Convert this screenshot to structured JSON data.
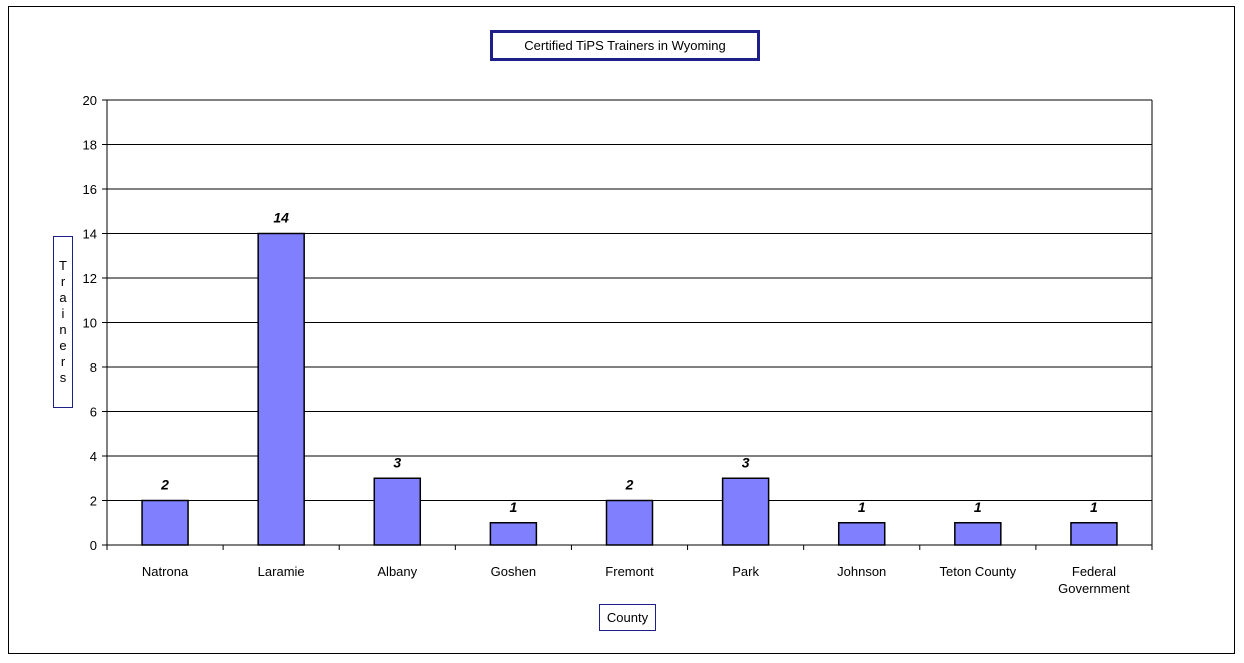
{
  "chart_data": {
    "type": "bar",
    "title": "Certified TiPS Trainers in Wyoming",
    "xlabel": "County",
    "ylabel": "Trainers",
    "categories": [
      "Natrona",
      "Laramie",
      "Albany",
      "Goshen",
      "Fremont",
      "Park",
      "Johnson",
      "Teton County",
      "Federal Government"
    ],
    "values": [
      2,
      14,
      3,
      1,
      2,
      3,
      1,
      1,
      1
    ],
    "ylim": [
      0,
      20
    ],
    "yticks": [
      0,
      2,
      4,
      6,
      8,
      10,
      12,
      14,
      16,
      18,
      20
    ],
    "grid": true,
    "data_labels": true,
    "colors": {
      "bar_fill": "#8080ff",
      "bar_stroke": "#000000",
      "grid": "#000000"
    }
  }
}
